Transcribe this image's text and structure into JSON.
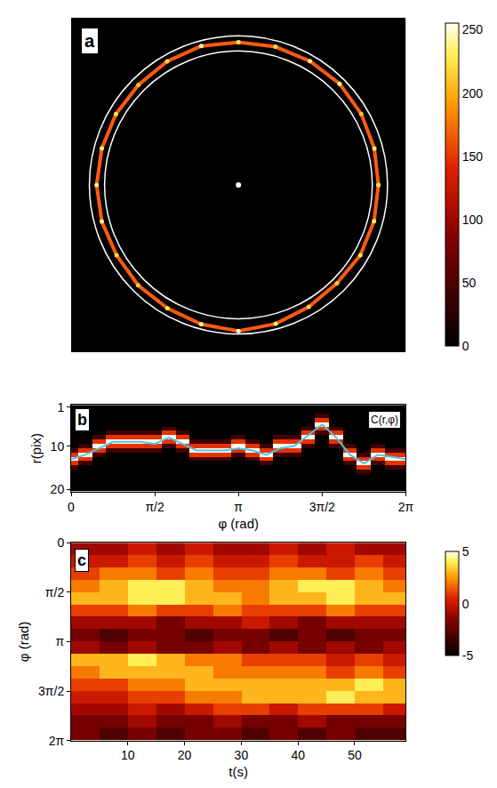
{
  "chart_data": [
    {
      "type": "scatter",
      "label": "a",
      "xlim": [
        0,
        440
      ],
      "ylim": [
        0,
        440
      ],
      "tick_labels": false,
      "center": [
        220,
        220
      ],
      "circle_radii": [
        176,
        196
      ],
      "ring": {
        "phi": [
          0,
          0.2618,
          0.5236,
          0.7854,
          1.0472,
          1.309,
          1.5708,
          1.8326,
          2.0944,
          2.3562,
          2.618,
          2.8798,
          3.1416,
          3.4034,
          3.6652,
          3.927,
          4.1888,
          4.4506,
          4.7124,
          4.9742,
          5.236,
          5.4978,
          5.7596,
          6.0214,
          6.2832
        ],
        "radius": [
          184,
          185,
          186.5,
          188,
          188,
          188,
          187.5,
          189,
          187.5,
          186,
          186,
          186,
          186.5,
          186,
          185,
          186.5,
          187,
          189.5,
          192,
          189,
          185,
          183,
          185,
          184.5,
          184
        ],
        "intensity": [
          220,
          230,
          210,
          240,
          235,
          225,
          230,
          245,
          220,
          210,
          225,
          230,
          240,
          235,
          220,
          215,
          230,
          240,
          250,
          235,
          220,
          215,
          225,
          230,
          220
        ]
      },
      "colorbar_range": [
        0,
        255
      ],
      "colorbar_ticks": [
        0,
        50,
        100,
        150,
        200,
        250
      ]
    },
    {
      "type": "heatmap",
      "label": "b",
      "annotation": "C(r,φ)",
      "x_label": "φ (rad)",
      "y_label": "r(pix)",
      "xlim": [
        0,
        6.2832
      ],
      "ylim": [
        20.5,
        0.5
      ],
      "xticks": [
        0,
        {
          "value": 1.5708,
          "label": "π/2"
        },
        {
          "value": 3.1416,
          "label": "π"
        },
        {
          "value": 4.7124,
          "label": "3π/2"
        },
        {
          "value": 6.2832,
          "label": "2π"
        }
      ],
      "yticks": [
        1,
        10,
        20
      ],
      "x": [
        0,
        0.2618,
        0.5236,
        0.7854,
        1.0472,
        1.309,
        1.5708,
        1.8326,
        2.0944,
        2.3562,
        2.618,
        2.8798,
        3.1416,
        3.4034,
        3.6652,
        3.927,
        4.1888,
        4.4506,
        4.7124,
        4.9742,
        5.236,
        5.4978,
        5.7596,
        6.0214,
        6.2832
      ],
      "y": [
        1,
        2,
        3,
        4,
        5,
        6,
        7,
        8,
        9,
        10,
        11,
        12,
        13,
        14,
        15,
        16,
        17,
        18,
        19,
        20
      ],
      "z": [
        [
          15,
          15,
          15,
          15,
          15,
          15,
          15,
          15,
          15,
          15,
          15,
          15,
          15,
          15,
          15,
          15,
          15,
          15,
          15,
          15,
          15,
          15,
          15,
          15,
          15
        ],
        [
          15,
          15,
          15,
          15,
          15,
          15,
          15,
          15,
          15,
          15,
          15,
          15,
          15,
          15,
          15,
          15,
          15,
          15,
          15,
          15,
          15,
          15,
          15,
          15,
          15
        ],
        [
          15,
          15,
          15,
          15,
          15,
          15,
          15,
          15,
          15,
          15,
          15,
          15,
          15,
          15,
          15,
          15,
          15,
          15,
          50,
          15,
          15,
          15,
          15,
          15,
          15
        ],
        [
          15,
          15,
          15,
          15,
          15,
          15,
          15,
          15,
          15,
          15,
          15,
          15,
          15,
          15,
          15,
          15,
          15,
          15,
          140,
          15,
          15,
          15,
          15,
          15,
          15
        ],
        [
          15,
          15,
          15,
          15,
          15,
          15,
          15,
          15,
          15,
          15,
          15,
          15,
          15,
          15,
          15,
          15,
          15,
          15,
          230,
          15,
          15,
          15,
          15,
          15,
          15
        ],
        [
          15,
          15,
          15,
          15,
          15,
          15,
          15,
          50,
          15,
          15,
          15,
          15,
          15,
          15,
          15,
          15,
          15,
          50,
          140,
          50,
          15,
          15,
          15,
          15,
          15
        ],
        [
          15,
          15,
          15,
          50,
          50,
          50,
          50,
          140,
          50,
          15,
          15,
          15,
          15,
          15,
          15,
          15,
          15,
          140,
          50,
          140,
          15,
          15,
          15,
          15,
          15
        ],
        [
          15,
          15,
          50,
          140,
          140,
          140,
          140,
          230,
          140,
          15,
          15,
          15,
          50,
          15,
          15,
          50,
          50,
          230,
          15,
          230,
          15,
          15,
          15,
          15,
          15
        ],
        [
          15,
          15,
          140,
          230,
          230,
          230,
          230,
          140,
          230,
          50,
          50,
          50,
          140,
          50,
          15,
          140,
          140,
          140,
          15,
          140,
          15,
          15,
          15,
          15,
          15
        ],
        [
          15,
          50,
          230,
          140,
          140,
          140,
          140,
          50,
          140,
          140,
          140,
          140,
          230,
          140,
          50,
          230,
          230,
          50,
          15,
          50,
          50,
          15,
          50,
          15,
          15
        ],
        [
          50,
          140,
          140,
          50,
          50,
          50,
          50,
          15,
          50,
          230,
          230,
          230,
          140,
          230,
          140,
          140,
          140,
          15,
          15,
          15,
          140,
          15,
          140,
          50,
          50
        ],
        [
          140,
          230,
          50,
          15,
          15,
          15,
          15,
          15,
          15,
          140,
          140,
          140,
          50,
          140,
          230,
          50,
          50,
          15,
          15,
          15,
          230,
          50,
          230,
          140,
          140
        ],
        [
          230,
          140,
          15,
          15,
          15,
          15,
          15,
          15,
          15,
          50,
          50,
          50,
          15,
          50,
          140,
          15,
          15,
          15,
          15,
          15,
          140,
          140,
          140,
          230,
          230
        ],
        [
          140,
          50,
          15,
          15,
          15,
          15,
          15,
          15,
          15,
          15,
          15,
          15,
          15,
          15,
          50,
          15,
          15,
          15,
          15,
          15,
          50,
          230,
          50,
          140,
          140
        ],
        [
          50,
          15,
          15,
          15,
          15,
          15,
          15,
          15,
          15,
          15,
          15,
          15,
          15,
          15,
          15,
          15,
          15,
          15,
          15,
          15,
          15,
          140,
          15,
          50,
          50
        ],
        [
          15,
          15,
          15,
          15,
          15,
          15,
          15,
          15,
          15,
          15,
          15,
          15,
          15,
          15,
          15,
          15,
          15,
          15,
          15,
          15,
          15,
          50,
          15,
          15,
          15
        ],
        [
          15,
          15,
          15,
          15,
          15,
          15,
          15,
          15,
          15,
          15,
          15,
          15,
          15,
          15,
          15,
          15,
          15,
          15,
          15,
          15,
          15,
          15,
          15,
          15,
          15
        ],
        [
          15,
          15,
          15,
          15,
          15,
          15,
          15,
          15,
          15,
          15,
          15,
          15,
          15,
          15,
          15,
          15,
          15,
          15,
          15,
          15,
          15,
          15,
          15,
          15,
          15
        ],
        [
          15,
          15,
          15,
          15,
          15,
          15,
          15,
          15,
          15,
          15,
          15,
          15,
          15,
          15,
          15,
          15,
          15,
          15,
          15,
          15,
          15,
          15,
          15,
          15,
          15
        ],
        [
          15,
          15,
          15,
          15,
          15,
          15,
          15,
          15,
          15,
          15,
          15,
          15,
          15,
          15,
          15,
          15,
          15,
          15,
          15,
          15,
          15,
          15,
          15,
          15,
          15
        ]
      ],
      "series": [
        {
          "type": "line",
          "color": "#4ec4ea",
          "values": [
            13,
            12,
            10.5,
            9,
            9,
            9,
            9.5,
            8,
            9.5,
            11,
            11,
            11,
            10.5,
            11,
            12,
            10.5,
            10,
            7.5,
            5,
            8,
            12,
            14,
            12,
            12.5,
            13
          ]
        }
      ]
    },
    {
      "type": "heatmap",
      "label": "c",
      "x_label": "t(s)",
      "y_label": "φ (rad)",
      "xlim": [
        0,
        59
      ],
      "ylim": [
        6.2832,
        0
      ],
      "xticks": [
        10,
        20,
        30,
        40,
        50
      ],
      "yticks": [
        0,
        {
          "value": 1.5708,
          "label": "π/2"
        },
        {
          "value": 3.1416,
          "label": "π"
        },
        {
          "value": 4.7124,
          "label": "3π/2"
        },
        {
          "value": 6.2832,
          "label": "2π"
        }
      ],
      "x": [
        2.5,
        7.5,
        12.5,
        17.5,
        22.5,
        27.5,
        32.5,
        37.5,
        42.5,
        47.5,
        52.5,
        57.5
      ],
      "y": [
        0.196,
        0.589,
        0.982,
        1.374,
        1.767,
        2.16,
        2.553,
        2.945,
        3.338,
        3.731,
        4.123,
        4.516,
        4.909,
        5.301,
        5.694,
        6.087
      ],
      "z": [
        [
          -1,
          -1,
          0,
          -1,
          0,
          -1,
          -1,
          0,
          -1,
          0,
          -1,
          -1
        ],
        [
          0,
          0,
          1,
          0,
          1,
          0,
          0,
          1,
          0,
          0,
          1,
          0
        ],
        [
          1,
          2,
          2,
          1,
          2,
          1,
          1,
          2,
          2,
          1,
          2,
          1
        ],
        [
          2,
          3,
          4,
          4,
          3,
          2,
          2,
          3,
          4,
          4,
          3,
          2
        ],
        [
          3,
          3,
          4,
          4,
          3,
          3,
          2,
          3,
          3,
          4,
          3,
          3
        ],
        [
          1,
          1,
          2,
          1,
          1,
          2,
          1,
          1,
          1,
          2,
          1,
          1
        ],
        [
          -1,
          -1,
          -1,
          -2,
          -1,
          -1,
          0,
          -1,
          -2,
          -1,
          -1,
          -1
        ],
        [
          -2,
          -3,
          -2,
          -2,
          -3,
          -2,
          -2,
          -3,
          -2,
          -3,
          -2,
          -2
        ],
        [
          -1,
          -2,
          -1,
          -2,
          -2,
          -1,
          -2,
          -1,
          -2,
          -1,
          -2,
          -1
        ],
        [
          3,
          3,
          4,
          3,
          2,
          2,
          1,
          1,
          1,
          0,
          1,
          0
        ],
        [
          2,
          3,
          3,
          3,
          3,
          2,
          2,
          2,
          2,
          1,
          2,
          1
        ],
        [
          1,
          1,
          2,
          2,
          3,
          3,
          3,
          3,
          3,
          3,
          4,
          3
        ],
        [
          0,
          0,
          1,
          1,
          2,
          2,
          3,
          3,
          3,
          4,
          3,
          3
        ],
        [
          -1,
          -1,
          0,
          -1,
          0,
          1,
          1,
          0,
          1,
          1,
          1,
          0
        ],
        [
          -2,
          -2,
          -1,
          -2,
          -2,
          -1,
          -2,
          -2,
          -1,
          -2,
          -2,
          -2
        ],
        [
          -2,
          -3,
          -2,
          -3,
          -2,
          -2,
          -3,
          -2,
          -3,
          -2,
          -3,
          -3
        ]
      ],
      "colorbar_range": [
        -5,
        5
      ],
      "colorbar_ticks": [
        -5,
        0,
        5
      ]
    }
  ]
}
